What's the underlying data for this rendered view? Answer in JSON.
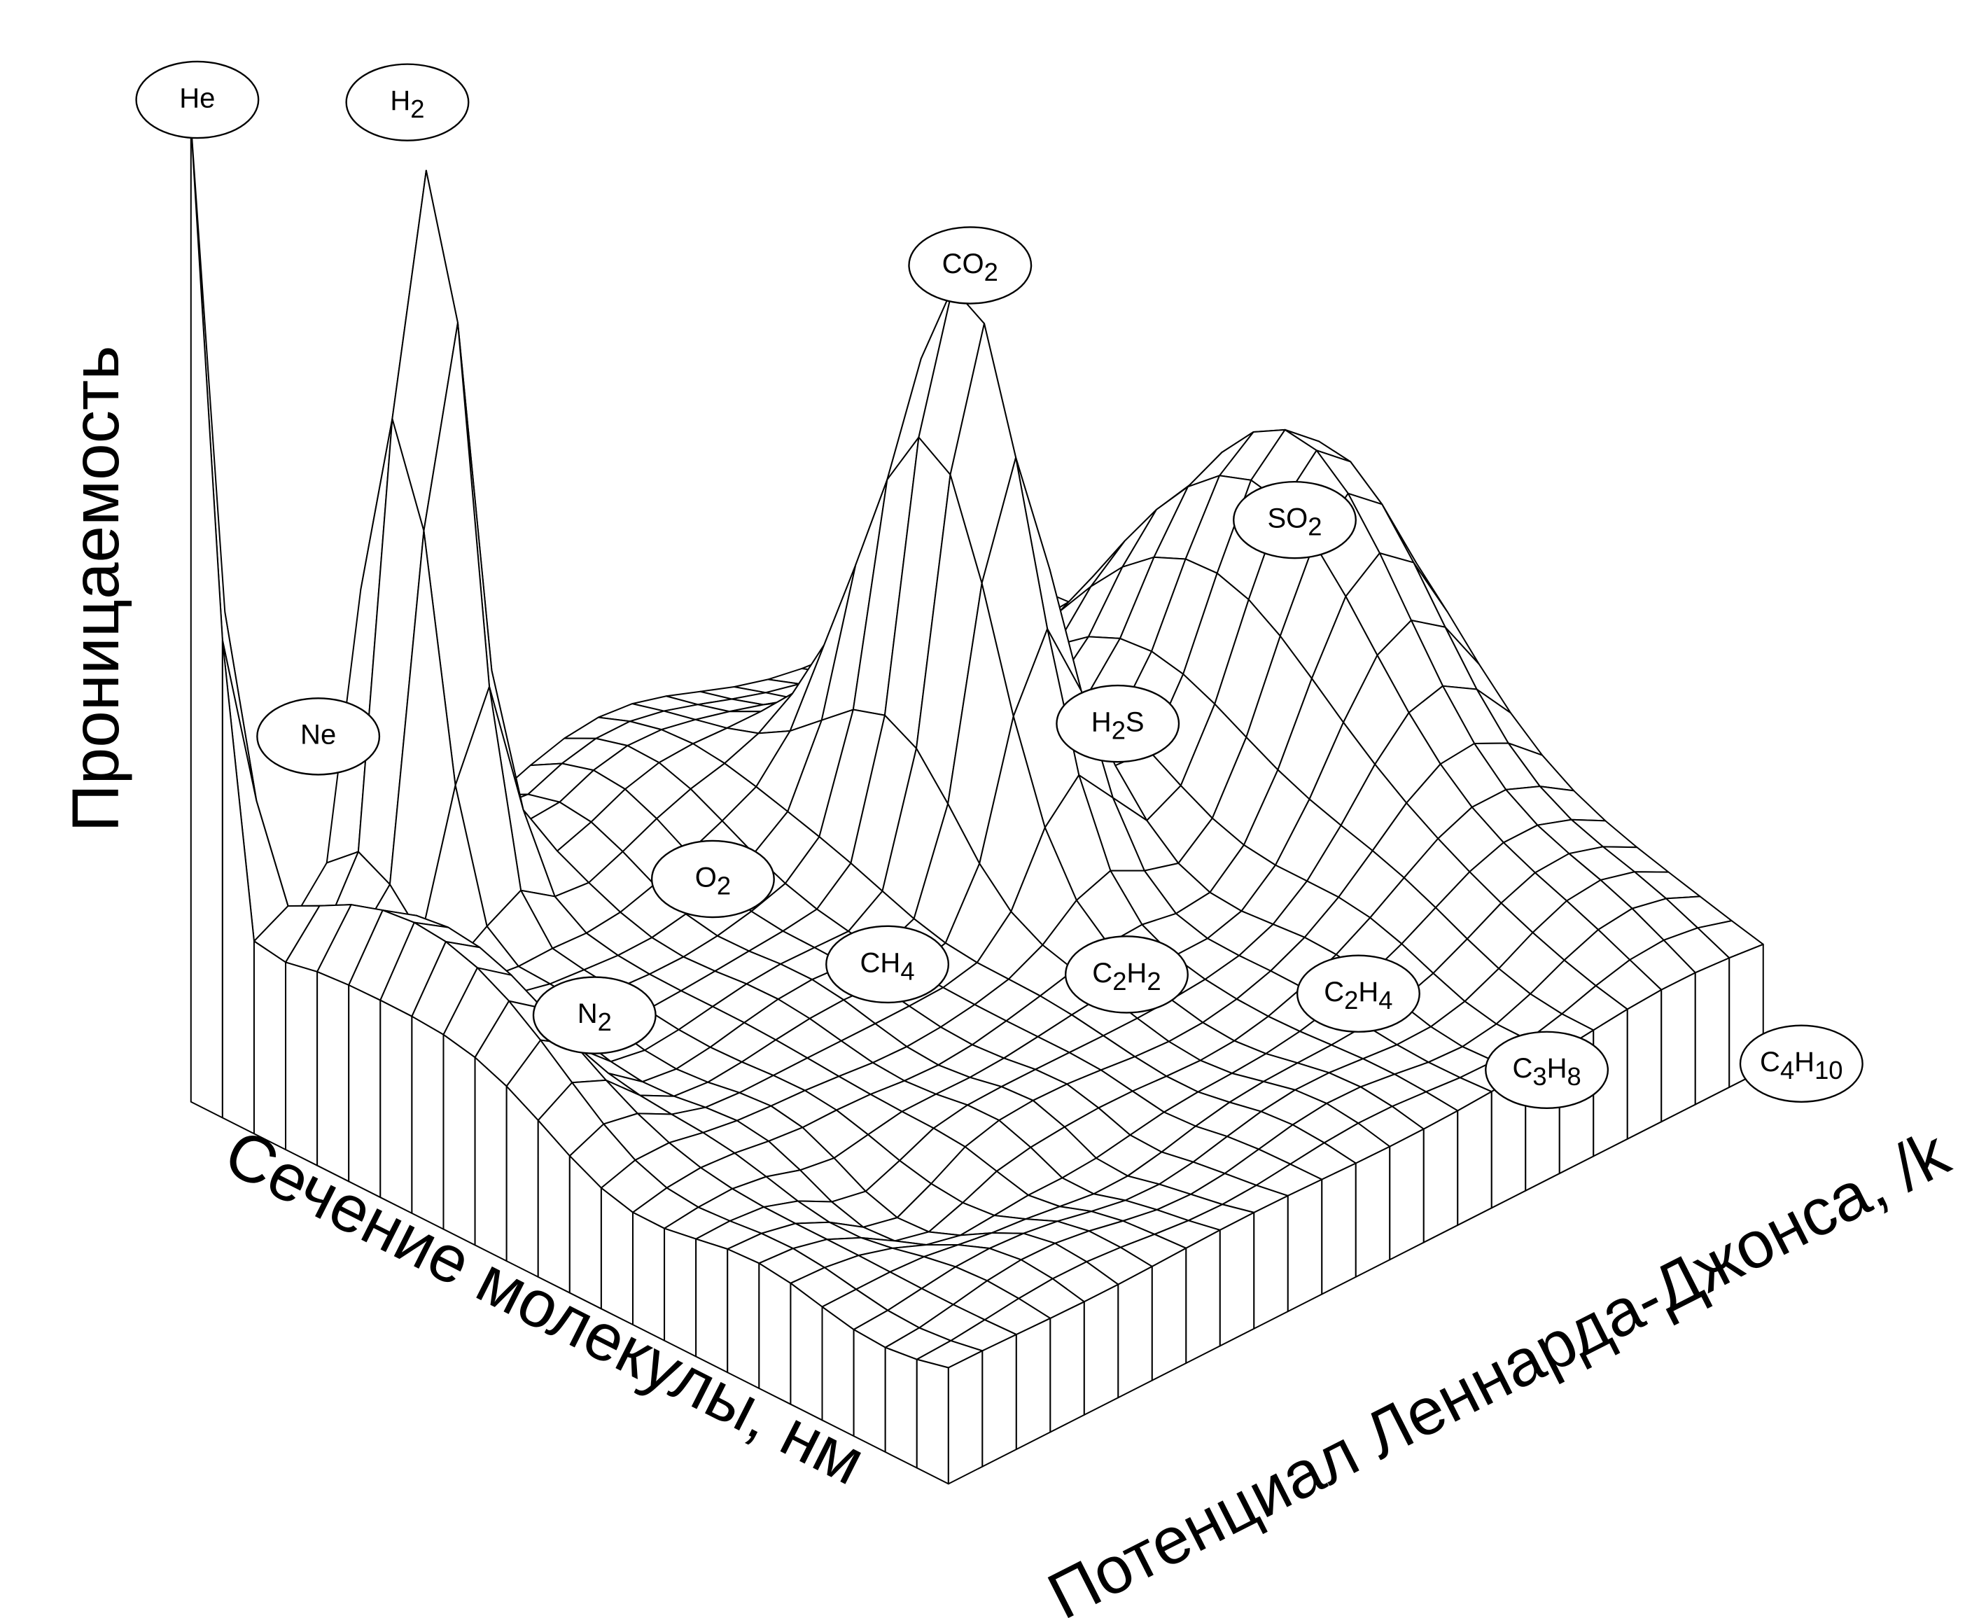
{
  "axes": {
    "z_label": "Проницаемость",
    "x_label": "Сечение молекулы, нм",
    "y_label": "Потенциал Леннарда-Джонса, /k"
  },
  "peaks": [
    {
      "parts": [
        "He"
      ]
    },
    {
      "parts": [
        "H",
        "2"
      ]
    },
    {
      "parts": [
        "CO",
        "2"
      ]
    },
    {
      "parts": [
        "SO",
        "2"
      ]
    },
    {
      "parts": [
        "Ne"
      ]
    },
    {
      "parts": [
        "H",
        "2",
        "S"
      ]
    },
    {
      "parts": [
        "O",
        "2"
      ]
    },
    {
      "parts": [
        "CH",
        "4"
      ]
    },
    {
      "parts": [
        "C",
        "2",
        "H",
        "2"
      ]
    },
    {
      "parts": [
        "C",
        "2",
        "H",
        "4"
      ]
    },
    {
      "parts": [
        "N",
        "2"
      ]
    },
    {
      "parts": [
        "C",
        "3",
        "H",
        "8"
      ]
    },
    {
      "parts": [
        "C",
        "4",
        "H",
        "10"
      ]
    }
  ]
}
